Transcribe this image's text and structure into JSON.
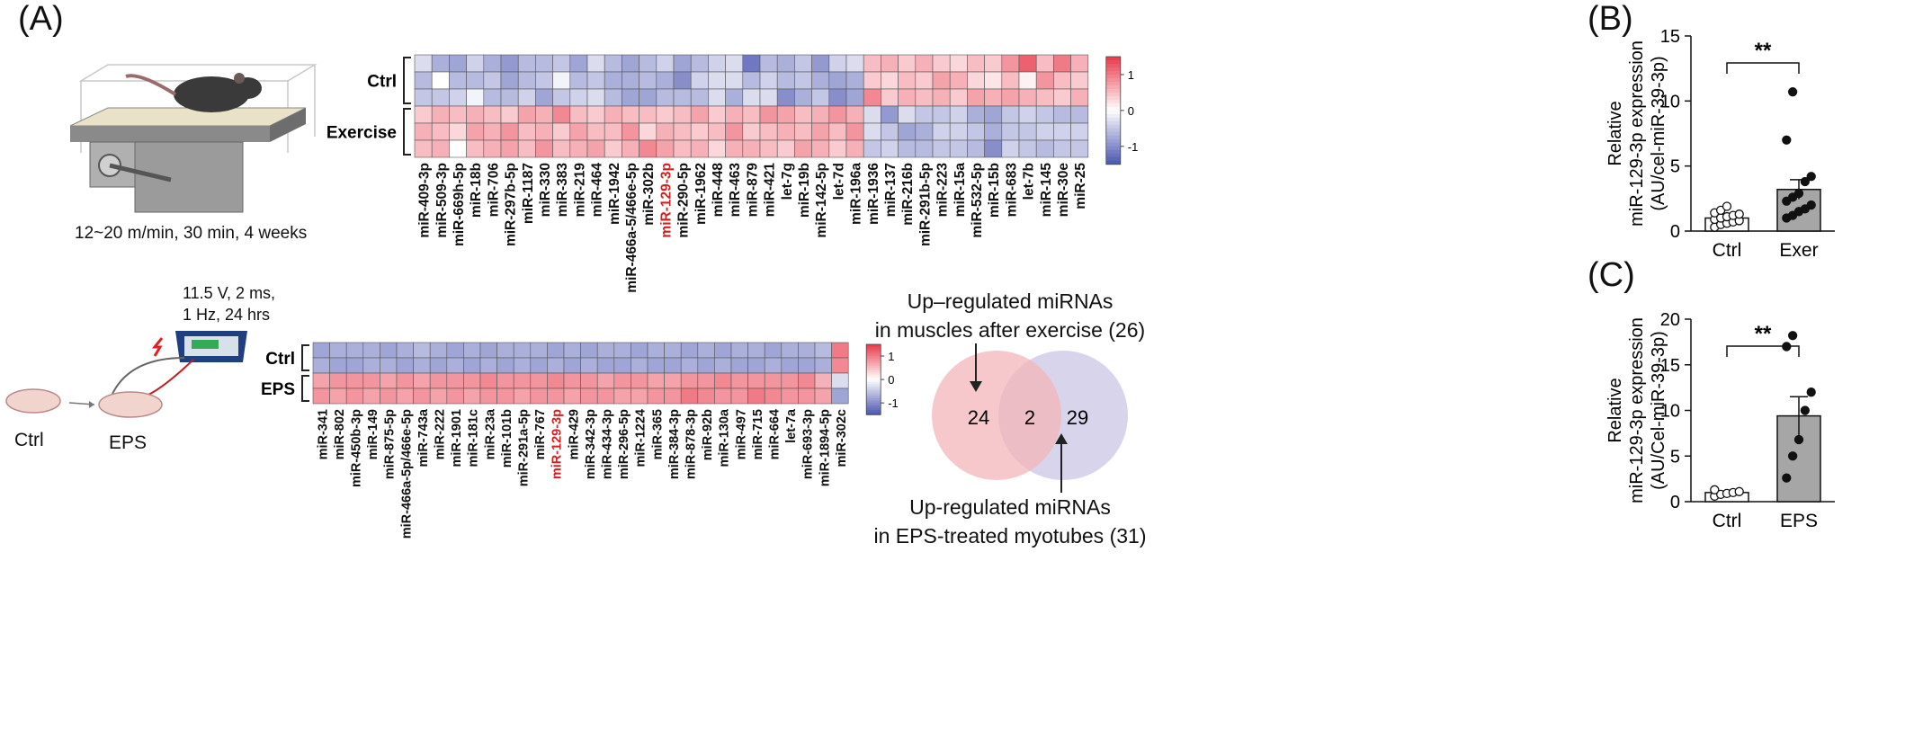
{
  "panels": {
    "A": "(A)",
    "B": "(B)",
    "C": "(C)"
  },
  "exercise_caption": "12~20 m/min, 30 min, 4 weeks",
  "eps_params": [
    "11.5 V, 2 ms,",
    "1 Hz, 24 hrs"
  ],
  "eps_dish_labels": {
    "ctrl": "Ctrl",
    "eps": "EPS"
  },
  "venn": {
    "top_label": [
      "Up–regulated miRNAs",
      "in muscles after exercise (26)"
    ],
    "bottom_label": [
      "Up-regulated miRNAs",
      "in EPS-treated myotubes  (31)"
    ],
    "left_only": "24",
    "overlap": "2",
    "right_only": "29",
    "colors": {
      "left": "#f4b6b9",
      "right": "#c9c6e6"
    }
  },
  "chart_data": [
    {
      "type": "heatmap",
      "groups": [
        "Ctrl",
        "Exercise"
      ],
      "columns": [
        "miR-409-3p",
        "miR-509-3p",
        "miR-669h-5p",
        "miR-18b",
        "miR-706",
        "miR-297b-5p",
        "miR-1187",
        "miR-330",
        "miR-383",
        "miR-219",
        "miR-464",
        "miR-1942",
        "miR-466a-5/466e-5p",
        "miR-302b",
        "miR-129-3p",
        "miR-290-5p",
        "miR-1962",
        "miR-448",
        "miR-463",
        "miR-879",
        "miR-421",
        "let-7g",
        "miR-19b",
        "miR-142-5p",
        "let-7d",
        "miR-196a",
        "miR-1936",
        "miR-137",
        "miR-216b",
        "miR-291b-5p",
        "miR-223",
        "miR-15a",
        "miR-532-5p",
        "miR-15b",
        "miR-683",
        "let-7b",
        "miR-145",
        "miR-30e",
        "miR-25"
      ],
      "highlight": "miR-129-3p",
      "highlight_color": "#d42020",
      "colorbar_ticks": [
        "1",
        "0",
        "-1"
      ],
      "color_range": [
        -1.5,
        1.5
      ],
      "colors": {
        "low": "#4b56b0",
        "mid": "#ffffff",
        "high": "#e8394a"
      },
      "rows": [
        [
          -0.3,
          -0.7,
          -0.8,
          -0.4,
          -0.7,
          -0.9,
          -0.6,
          -0.6,
          -0.5,
          -0.8,
          -0.3,
          -0.6,
          -0.8,
          -0.6,
          -0.4,
          -0.8,
          -0.6,
          -0.4,
          -0.3,
          -1.2,
          -0.6,
          -0.7,
          -0.5,
          -0.9,
          -0.4,
          -0.3,
          0.5,
          0.6,
          0.4,
          0.6,
          0.4,
          0.3,
          0.5,
          0.4,
          0.8,
          1.2,
          0.5,
          1.0,
          0.6
        ],
        [
          -0.6,
          0.0,
          -0.6,
          -0.6,
          -0.5,
          -0.8,
          -0.6,
          -0.5,
          -0.1,
          -0.6,
          -0.5,
          -0.7,
          -0.7,
          -0.6,
          -0.7,
          -1.0,
          -0.4,
          -0.3,
          -0.3,
          -0.6,
          -0.4,
          -0.6,
          -0.5,
          -0.7,
          -0.8,
          -0.7,
          0.4,
          0.3,
          0.5,
          0.4,
          0.7,
          0.6,
          0.3,
          0.2,
          0.5,
          0.1,
          0.8,
          0.5,
          0.4
        ],
        [
          -0.5,
          -0.5,
          -0.4,
          -0.1,
          -0.6,
          -0.6,
          -0.4,
          -0.8,
          -0.5,
          -0.4,
          -0.3,
          -0.6,
          -0.8,
          -0.8,
          -0.6,
          -0.6,
          -0.6,
          -0.3,
          -0.7,
          -0.3,
          -0.3,
          -1.0,
          -0.7,
          -0.5,
          -1.0,
          -0.8,
          0.9,
          0.4,
          0.6,
          0.5,
          0.6,
          0.4,
          0.7,
          0.6,
          0.7,
          0.6,
          0.5,
          0.4,
          0.6
        ],
        [
          0.4,
          0.6,
          0.5,
          0.6,
          0.5,
          0.4,
          0.7,
          0.6,
          0.9,
          0.5,
          0.4,
          0.6,
          0.5,
          0.5,
          0.4,
          0.5,
          0.7,
          0.4,
          0.6,
          0.5,
          0.8,
          0.7,
          0.5,
          0.6,
          0.8,
          0.6,
          -0.3,
          -0.9,
          -0.3,
          -0.5,
          -0.5,
          -0.4,
          -0.7,
          -0.8,
          -0.5,
          -0.4,
          -0.5,
          -0.6,
          -0.6
        ],
        [
          0.6,
          0.5,
          0.3,
          0.7,
          0.6,
          0.8,
          0.5,
          0.6,
          0.4,
          0.7,
          0.5,
          0.5,
          0.8,
          0.3,
          0.6,
          0.5,
          0.4,
          0.5,
          0.8,
          0.4,
          0.5,
          0.6,
          0.5,
          0.7,
          0.5,
          0.8,
          -0.3,
          -0.5,
          -0.8,
          -0.7,
          -0.4,
          -0.4,
          -0.5,
          -0.7,
          -0.5,
          -0.5,
          -0.4,
          -0.4,
          -0.4
        ],
        [
          0.5,
          0.6,
          0.0,
          0.5,
          0.6,
          0.7,
          0.5,
          0.8,
          0.5,
          0.6,
          0.7,
          0.4,
          0.6,
          0.9,
          0.7,
          0.5,
          0.6,
          0.3,
          0.6,
          0.6,
          0.5,
          0.4,
          0.7,
          0.6,
          0.4,
          0.6,
          -0.5,
          -0.4,
          -0.6,
          -0.6,
          -0.5,
          -0.5,
          -0.6,
          -1.0,
          -0.4,
          -0.5,
          -0.6,
          -0.5,
          -0.5
        ]
      ]
    },
    {
      "type": "heatmap",
      "groups": [
        "Ctrl",
        "EPS"
      ],
      "columns": [
        "miR-341",
        "miR-802",
        "miR-450b-3p",
        "miR-149",
        "miR-875-5p",
        "miR-466a-5p/466e-5p",
        "miR-743a",
        "miR-222",
        "miR-1901",
        "miR-181c",
        "miR-23a",
        "miR-101b",
        "miR-291a-5p",
        "miR-767",
        "miR-129-3p",
        "miR-429",
        "miR-342-3p",
        "miR-434-3p",
        "miR-296-5p",
        "miR-1224",
        "miR-365",
        "miR-384-3p",
        "miR-878-3p",
        "miR-92b",
        "miR-130a",
        "miR-497",
        "miR-715",
        "miR-664",
        "let-7a",
        "miR-693-3p",
        "miR-1894-5p",
        "miR-302c"
      ],
      "highlight": "miR-129-3p",
      "highlight_color": "#d42020",
      "colorbar_ticks": [
        "1",
        "0",
        "-1"
      ],
      "color_range": [
        -1.5,
        1.5
      ],
      "colors": {
        "low": "#4b56b0",
        "mid": "#ffffff",
        "high": "#e8394a"
      },
      "rows": [
        [
          -0.8,
          -0.7,
          -0.7,
          -0.7,
          -0.8,
          -0.7,
          -0.6,
          -0.7,
          -0.8,
          -0.7,
          -0.8,
          -0.7,
          -0.7,
          -0.7,
          -0.8,
          -0.7,
          -0.8,
          -0.7,
          -0.7,
          -0.8,
          -0.7,
          -0.7,
          -0.8,
          -0.7,
          -0.8,
          -0.7,
          -0.7,
          -0.8,
          -0.7,
          -0.7,
          -0.6,
          1.0
        ],
        [
          -0.7,
          -0.8,
          -0.8,
          -0.7,
          -0.7,
          -0.8,
          -0.7,
          -0.8,
          -0.7,
          -0.8,
          -0.7,
          -0.8,
          -0.7,
          -0.8,
          -0.7,
          -0.8,
          -0.7,
          -0.8,
          -0.8,
          -0.7,
          -0.8,
          -0.8,
          -0.7,
          -0.8,
          -0.7,
          -0.8,
          -0.8,
          -0.7,
          -0.8,
          -0.8,
          -0.7,
          0.9
        ],
        [
          0.7,
          0.8,
          0.8,
          0.8,
          0.7,
          0.8,
          0.7,
          0.8,
          0.8,
          0.8,
          0.9,
          0.8,
          0.8,
          0.8,
          0.9,
          0.8,
          0.8,
          0.7,
          0.8,
          0.8,
          0.7,
          0.7,
          0.8,
          0.8,
          0.9,
          0.8,
          0.8,
          0.8,
          0.8,
          0.9,
          0.6,
          -0.3
        ],
        [
          0.8,
          0.7,
          0.8,
          0.7,
          0.8,
          0.7,
          0.8,
          0.7,
          0.8,
          0.7,
          0.8,
          0.8,
          0.7,
          0.8,
          0.8,
          0.7,
          0.8,
          0.8,
          0.7,
          0.7,
          0.8,
          0.8,
          1.0,
          0.9,
          0.8,
          0.8,
          1.0,
          0.9,
          0.8,
          0.8,
          0.7,
          -0.8
        ]
      ]
    },
    {
      "type": "bar",
      "panel": "B",
      "categories": [
        "Ctrl",
        "Exer"
      ],
      "values": [
        1.0,
        3.2
      ],
      "errors": [
        0.3,
        0.75
      ],
      "points": [
        [
          0.3,
          0.5,
          0.6,
          0.7,
          0.8,
          0.9,
          1.0,
          1.1,
          1.2,
          1.3,
          1.4,
          1.6,
          1.9
        ],
        [
          1.0,
          1.2,
          1.5,
          1.7,
          2.0,
          2.3,
          2.6,
          2.9,
          3.8,
          4.2,
          7.0,
          10.7
        ]
      ],
      "fill": [
        "#ffffff",
        "#a6a6a6"
      ],
      "point_fill": [
        "#ffffff",
        "#111111"
      ],
      "significance": "**",
      "ylabel": [
        "Relative",
        "miR-129-3p expression",
        "(AU/cel-miR-39-3p)"
      ],
      "yticks": [
        0,
        5,
        10,
        15
      ],
      "ylim": [
        0,
        15
      ]
    },
    {
      "type": "bar",
      "panel": "C",
      "categories": [
        "Ctrl",
        "EPS"
      ],
      "values": [
        1.0,
        9.4
      ],
      "errors": [
        0.15,
        2.1
      ],
      "points": [
        [
          0.6,
          0.8,
          0.9,
          1.0,
          1.1,
          1.3
        ],
        [
          2.6,
          5.0,
          6.8,
          10.0,
          12.0,
          17.0,
          18.2
        ]
      ],
      "fill": [
        "#ffffff",
        "#a6a6a6"
      ],
      "point_fill": [
        "#ffffff",
        "#111111"
      ],
      "significance": "**",
      "ylabel": [
        "Relative",
        "miR-129-3p expression",
        "(AU/Cel-miR-39-3p)"
      ],
      "yticks": [
        0,
        5,
        10,
        15,
        20
      ],
      "ylim": [
        0,
        20
      ]
    }
  ]
}
